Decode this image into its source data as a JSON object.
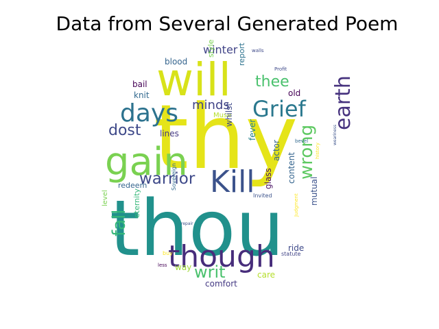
{
  "chart_data": {
    "type": "wordcloud",
    "title": "Data from Several Generated Poem",
    "words": [
      {
        "text": "thou",
        "color": "#21918c"
      },
      {
        "text": "thy",
        "color": "#e5e419"
      },
      {
        "text": "will",
        "color": "#d8e219"
      },
      {
        "text": "gain",
        "color": "#7ad151"
      },
      {
        "text": "Kill",
        "color": "#3b528b"
      },
      {
        "text": "though",
        "color": "#472d7b"
      },
      {
        "text": "days",
        "color": "#2c728e"
      },
      {
        "text": "Grief",
        "color": "#2a788e"
      },
      {
        "text": "earth",
        "color": "#46327e"
      },
      {
        "text": "warrior",
        "color": "#3e4989"
      },
      {
        "text": "fall",
        "color": "#35b779"
      },
      {
        "text": "wrong",
        "color": "#5ec962"
      },
      {
        "text": "writ",
        "color": "#4ac16d"
      },
      {
        "text": "dost",
        "color": "#3e4989"
      },
      {
        "text": "thee",
        "color": "#4ac16d"
      },
      {
        "text": "minds",
        "color": "#414487"
      },
      {
        "text": "winter",
        "color": "#414487"
      },
      {
        "text": "blood",
        "color": "#33638d"
      },
      {
        "text": "style",
        "color": "#7ad151"
      },
      {
        "text": "report",
        "color": "#2c728e"
      },
      {
        "text": "bail",
        "color": "#440154"
      },
      {
        "text": "knit",
        "color": "#31688e"
      },
      {
        "text": "Muse",
        "color": "#b5de2b"
      },
      {
        "text": "old",
        "color": "#440154"
      },
      {
        "text": "lines",
        "color": "#443983"
      },
      {
        "text": "whilst",
        "color": "#3e4989"
      },
      {
        "text": "fever",
        "color": "#26828e"
      },
      {
        "text": "actor",
        "color": "#33638d"
      },
      {
        "text": "content",
        "color": "#33638d"
      },
      {
        "text": "mutual",
        "color": "#3b528b"
      },
      {
        "text": "redeem",
        "color": "#33638d"
      },
      {
        "text": "glass",
        "color": "#471063"
      },
      {
        "text": "Invited",
        "color": "#3b528b"
      },
      {
        "text": "Judgment",
        "color": "#fde725"
      },
      {
        "text": "eternity",
        "color": "#35b779"
      },
      {
        "text": "Sovereign",
        "color": "#31688e"
      },
      {
        "text": "level",
        "color": "#7ad151"
      },
      {
        "text": "ride",
        "color": "#3e4989"
      },
      {
        "text": "statute",
        "color": "#414487"
      },
      {
        "text": "buy",
        "color": "#fde725"
      },
      {
        "text": "way",
        "color": "#a0da39"
      },
      {
        "text": "care",
        "color": "#b5de2b"
      },
      {
        "text": "less",
        "color": "#440154"
      },
      {
        "text": "comfort",
        "color": "#443983"
      },
      {
        "text": "walls",
        "color": "#3e4989"
      },
      {
        "text": "Profit",
        "color": "#3e4989"
      },
      {
        "text": "bevel",
        "color": "#31688e"
      },
      {
        "text": "history",
        "color": "#fde725"
      },
      {
        "text": "weariness",
        "color": "#3b528b"
      },
      {
        "text": "repair",
        "color": "#3b528b"
      }
    ]
  }
}
